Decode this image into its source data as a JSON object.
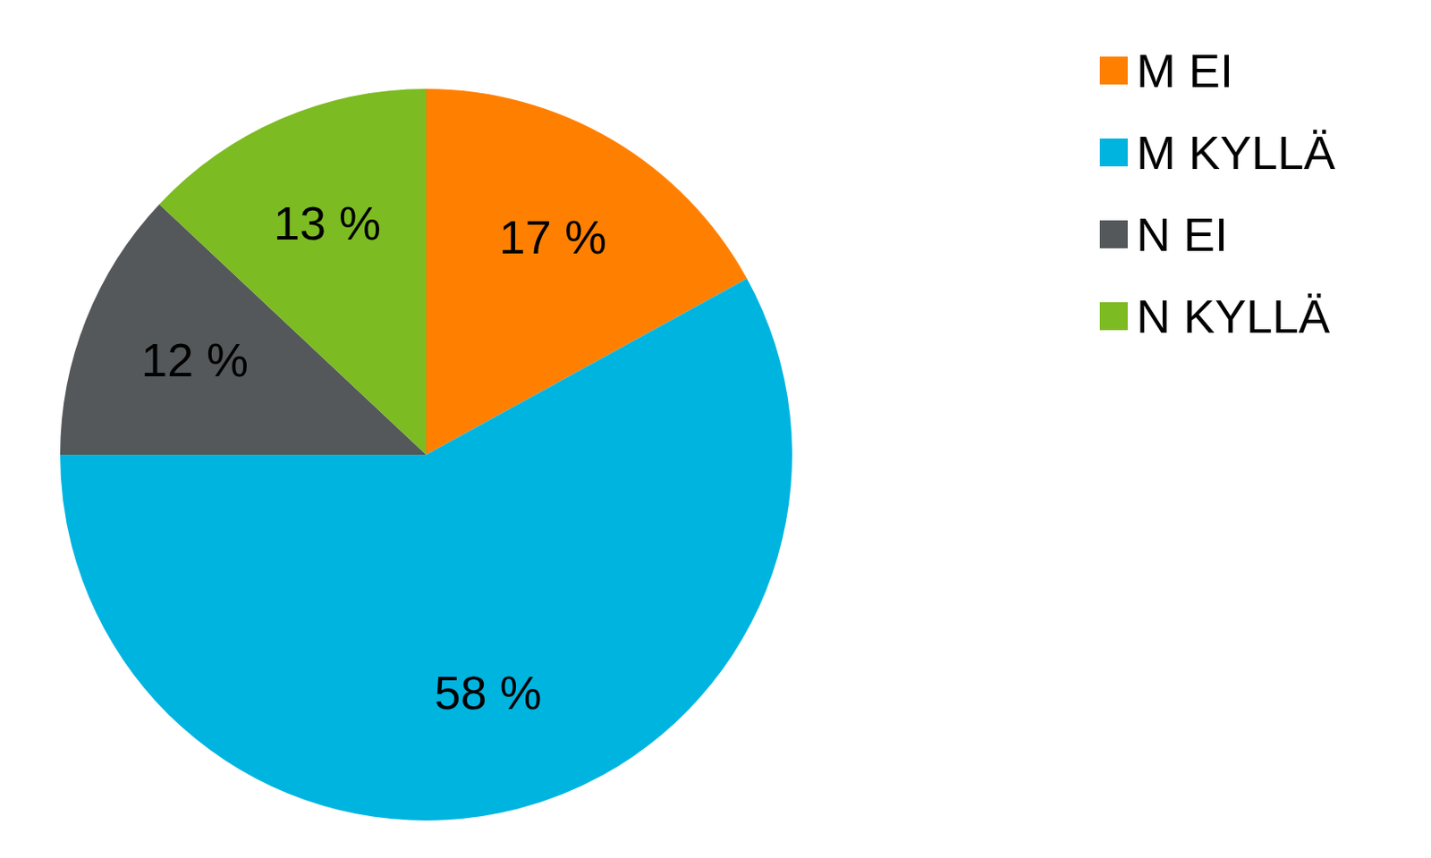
{
  "chart_data": {
    "type": "pie",
    "categories": [
      "M EI",
      "M KYLLÄ",
      "N EI",
      "N KYLLÄ"
    ],
    "values": [
      17,
      58,
      12,
      13
    ],
    "value_labels": [
      "17 %",
      "58 %",
      "12 %",
      "13 %"
    ],
    "colors": [
      "#ff8000",
      "#00b4e0",
      "#54585a",
      "#7dbb22"
    ],
    "data_labels": true,
    "legend": "right"
  }
}
